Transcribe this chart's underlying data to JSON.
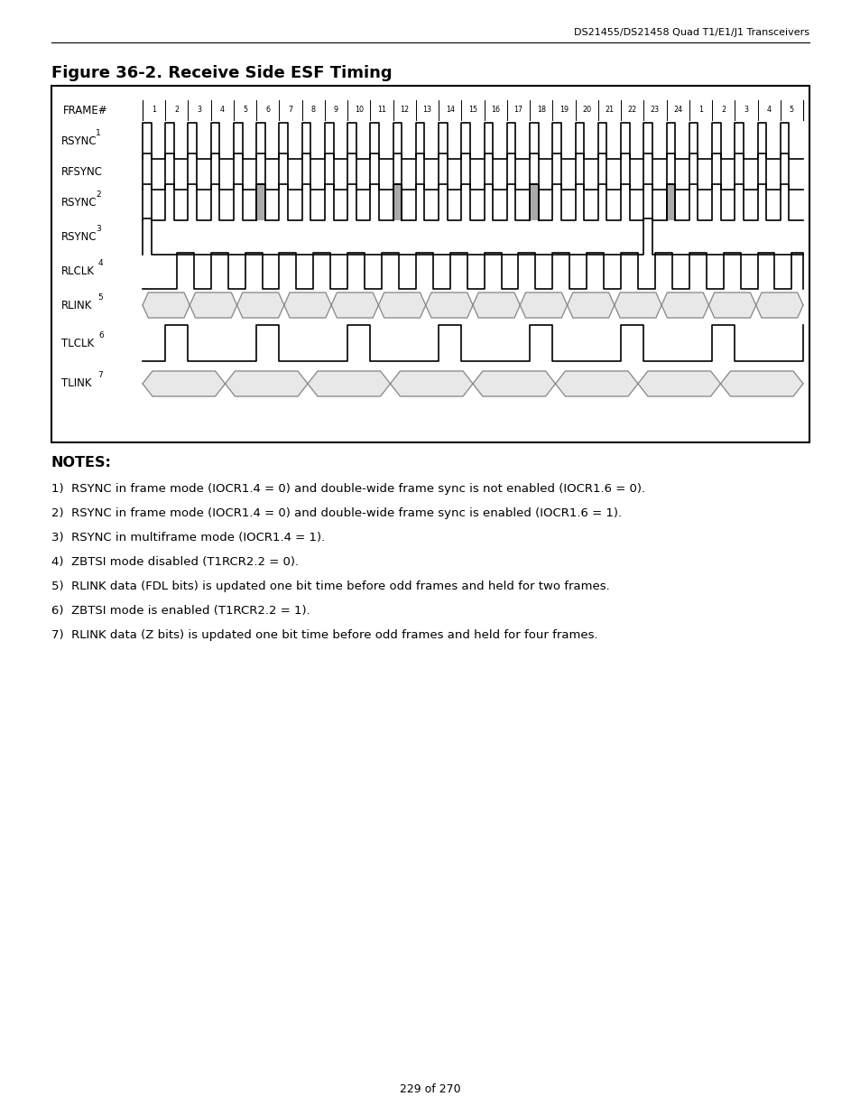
{
  "title": "Figure 36-2. Receive Side ESF Timing",
  "header_text": "DS21455/DS21458 Quad T1/E1/J1 Transceivers",
  "frame_numbers": [
    "1",
    "2",
    "3",
    "4",
    "5",
    "6",
    "7",
    "8",
    "9",
    "10",
    "11",
    "12",
    "13",
    "14",
    "15",
    "16",
    "17",
    "18",
    "19",
    "20",
    "21",
    "22",
    "23",
    "24",
    "1",
    "2",
    "3",
    "4",
    "5"
  ],
  "notes_title": "NOTES:",
  "notes": [
    "1)  RSYNC in frame mode (IOCR1.4 = 0) and double-wide frame sync is not enabled (IOCR1.6 = 0).",
    "2)  RSYNC in frame mode (IOCR1.4 = 0) and double-wide frame sync is enabled (IOCR1.6 = 1).",
    "3)  RSYNC in multiframe mode (IOCR1.4 = 1).",
    "4)  ZBTSI mode disabled (T1RCR2.2 = 0).",
    "5)  RLINK data (FDL bits) is updated one bit time before odd frames and held for two frames.",
    "6)  ZBTSI mode is enabled (T1RCR2.2 = 1).",
    "7)  RLINK data (Z bits) is updated one bit time before odd frames and held for four frames."
  ],
  "page_footer": "229 of 270",
  "bg_color": "#ffffff"
}
